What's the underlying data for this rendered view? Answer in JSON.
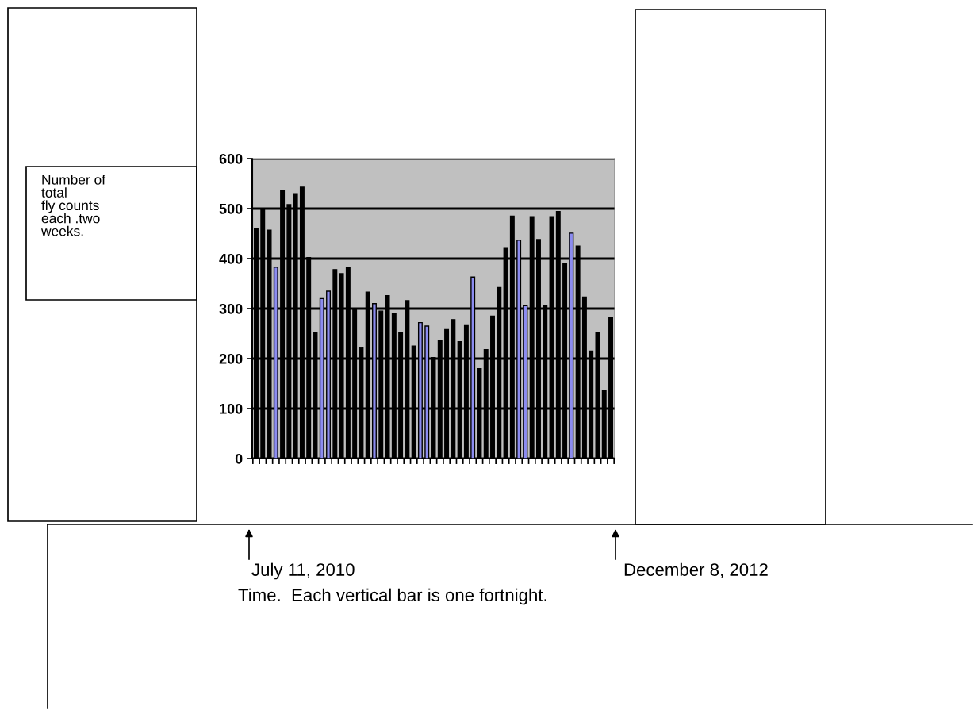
{
  "chart_data": {
    "type": "bar",
    "annotations": [
      "Number of\ntotal\nfly counts\neach .two\nweeks.",
      "July 11, 2010",
      "December 8, 2012",
      "Time.  Each vertical bar is one fortnight."
    ],
    "categories": [
      null,
      null,
      null,
      null,
      null,
      null,
      null,
      null,
      null,
      null,
      null,
      null,
      null,
      null,
      null,
      null,
      null,
      null,
      null,
      null,
      null,
      null,
      null,
      null,
      null,
      null,
      null,
      null,
      null,
      null,
      null,
      null,
      null,
      null,
      null,
      null,
      null,
      null,
      null,
      null,
      null,
      null,
      null,
      null,
      null,
      null,
      null,
      null,
      null,
      null,
      null,
      null,
      null,
      null,
      null
    ],
    "values": [
      460,
      500,
      457,
      383,
      537,
      508,
      530,
      543,
      402,
      253,
      320,
      335,
      378,
      370,
      383,
      300,
      222,
      333,
      310,
      295,
      326,
      291,
      253,
      316,
      225,
      272,
      265,
      202,
      237,
      258,
      278,
      234,
      266,
      363,
      180,
      218,
      285,
      342,
      422,
      485,
      437,
      306,
      484,
      438,
      307,
      484,
      494,
      390,
      451,
      425,
      323,
      215,
      253,
      136,
      282
    ],
    "colors": [
      "#000000",
      "#000000",
      "#000000",
      "#8c8cf0",
      "#000000",
      "#000000",
      "#000000",
      "#000000",
      "#000000",
      "#000000",
      "#8c8cf0",
      "#8c8cf0",
      "#000000",
      "#000000",
      "#000000",
      "#000000",
      "#000000",
      "#000000",
      "#8c8cf0",
      "#000000",
      "#000000",
      "#000000",
      "#000000",
      "#000000",
      "#000000",
      "#8c8cf0",
      "#8c8cf0",
      "#000000",
      "#000000",
      "#000000",
      "#000000",
      "#000000",
      "#000000",
      "#8c8cf0",
      "#000000",
      "#000000",
      "#000000",
      "#000000",
      "#000000",
      "#000000",
      "#8c8cf0",
      "#8c8cf0",
      "#000000",
      "#000000",
      "#000000",
      "#000000",
      "#000000",
      "#000000",
      "#8c8cf0",
      "#000000",
      "#000000",
      "#000000",
      "#000000",
      "#000000",
      "#000000"
    ],
    "ylim": [
      0,
      600
    ],
    "yticks": [
      0,
      100,
      200,
      300,
      400,
      500,
      600
    ],
    "grid": "y",
    "tick_labels": "y"
  }
}
